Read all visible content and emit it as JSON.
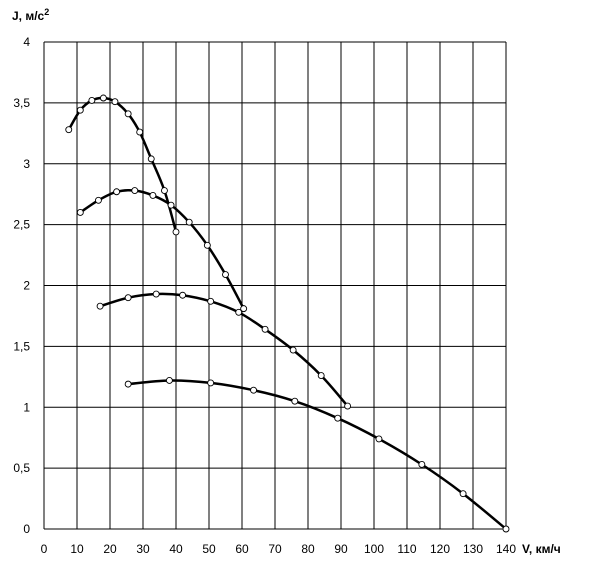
{
  "chart_data": {
    "type": "line",
    "ylabel": "J, м/с",
    "ylabel_sup": "2",
    "xlabel": "V, км/ч",
    "xlim": [
      0,
      140
    ],
    "ylim": [
      0,
      4
    ],
    "grid": true,
    "x_ticks": [
      "0",
      "10",
      "20",
      "30",
      "40",
      "50",
      "60",
      "70",
      "80",
      "90",
      "100",
      "110",
      "120",
      "130",
      "140"
    ],
    "y_ticks": [
      "0",
      "0,5",
      "1",
      "1,5",
      "2",
      "2,5",
      "3",
      "3,5",
      "4"
    ],
    "series": [
      {
        "x": [
          7.5,
          11,
          14.5,
          18,
          21.5,
          25.5,
          29,
          32.5,
          36.5,
          40
        ],
        "y": [
          3.28,
          3.44,
          3.52,
          3.54,
          3.51,
          3.41,
          3.26,
          3.04,
          2.78,
          2.44
        ]
      },
      {
        "x": [
          11,
          16.5,
          22,
          27.5,
          33,
          38.5,
          44,
          49.5,
          55,
          60.5
        ],
        "y": [
          2.6,
          2.7,
          2.77,
          2.78,
          2.74,
          2.66,
          2.52,
          2.33,
          2.09,
          1.81
        ]
      },
      {
        "x": [
          17,
          25.5,
          34,
          42,
          50.5,
          59,
          67,
          75.5,
          84,
          92
        ],
        "y": [
          1.83,
          1.9,
          1.93,
          1.92,
          1.87,
          1.78,
          1.64,
          1.47,
          1.26,
          1.01
        ]
      },
      {
        "x": [
          25.5,
          38,
          50.5,
          63.5,
          76,
          89,
          101.5,
          114.5,
          127,
          140
        ],
        "y": [
          1.19,
          1.22,
          1.2,
          1.14,
          1.05,
          0.91,
          0.74,
          0.53,
          0.29,
          0.0
        ]
      }
    ]
  }
}
